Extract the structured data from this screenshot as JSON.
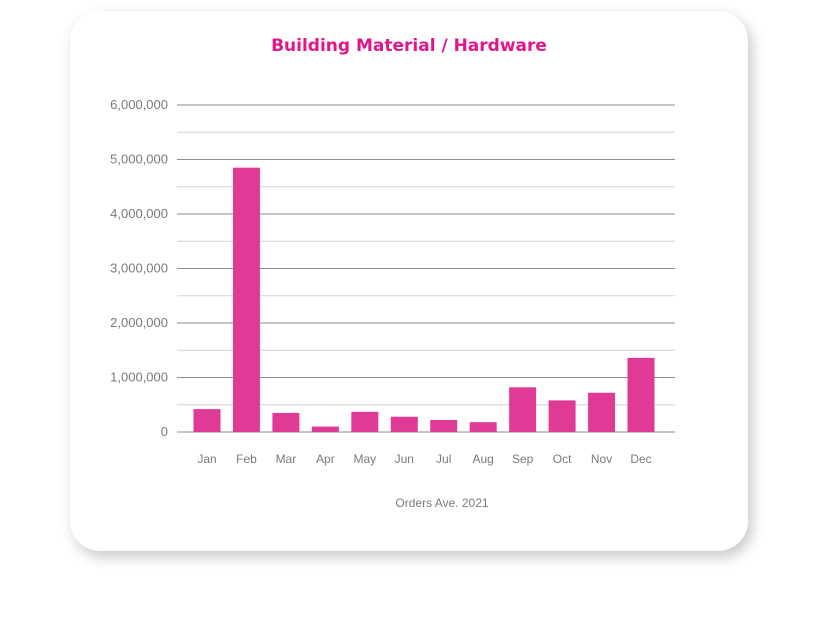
{
  "chart_data": {
    "type": "bar",
    "title": "Building Material / Hardware",
    "xlabel": "Orders Ave. 2021",
    "ylabel": "",
    "categories": [
      "Jan",
      "Feb",
      "Mar",
      "Apr",
      "May",
      "Jun",
      "Jul",
      "Aug",
      "Sep",
      "Oct",
      "Nov",
      "Dec"
    ],
    "values": [
      420000,
      4850000,
      350000,
      100000,
      370000,
      280000,
      220000,
      180000,
      820000,
      580000,
      720000,
      1360000
    ],
    "ylim": [
      0,
      6000000
    ],
    "yticks": [
      0,
      1000000,
      2000000,
      3000000,
      4000000,
      5000000,
      6000000
    ],
    "ytick_labels": [
      "0",
      "1,000,000",
      "2,000,000",
      "3,000,000",
      "4,000,000",
      "5,000,000",
      "6,000,000"
    ],
    "grid": true,
    "bar_color": "#de3a96",
    "title_color": "#e0168a"
  }
}
